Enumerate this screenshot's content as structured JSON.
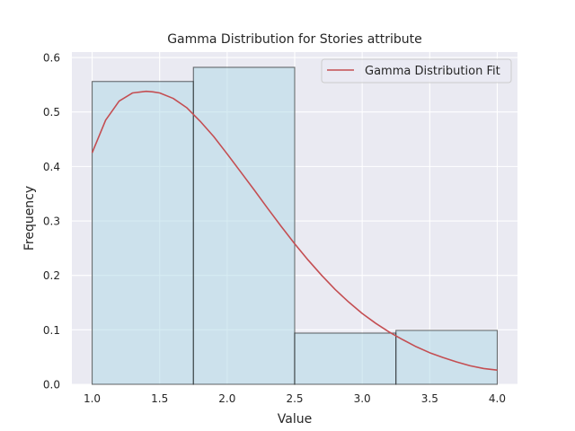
{
  "chart_data": {
    "type": "bar",
    "title": "Gamma Distribution for Stories attribute",
    "xlabel": "Value",
    "ylabel": "Frequency",
    "xlim": [
      0.85,
      4.15
    ],
    "ylim": [
      0.0,
      0.61
    ],
    "x_ticks": [
      1.0,
      1.5,
      2.0,
      2.5,
      3.0,
      3.5,
      4.0
    ],
    "x_tick_labels": [
      "1.0",
      "1.5",
      "2.0",
      "2.5",
      "3.0",
      "3.5",
      "4.0"
    ],
    "y_ticks": [
      0.0,
      0.1,
      0.2,
      0.3,
      0.4,
      0.5,
      0.6
    ],
    "y_tick_labels": [
      "0.0",
      "0.1",
      "0.2",
      "0.3",
      "0.4",
      "0.5",
      "0.6"
    ],
    "grid": true,
    "legend_position": "top-right",
    "histogram": {
      "bin_edges": [
        1.0,
        1.75,
        2.5,
        3.25,
        4.0
      ],
      "values": [
        0.556,
        0.582,
        0.094,
        0.099
      ],
      "fill_color": "#add8e6",
      "edge_color": "#000000"
    },
    "series": [
      {
        "name": "Gamma Distribution Fit",
        "type": "line",
        "color": "#c44e52",
        "x": [
          1.0,
          1.1,
          1.2,
          1.3,
          1.4,
          1.45,
          1.5,
          1.6,
          1.7,
          1.8,
          1.9,
          2.0,
          2.1,
          2.2,
          2.3,
          2.4,
          2.5,
          2.6,
          2.7,
          2.8,
          2.9,
          3.0,
          3.1,
          3.2,
          3.3,
          3.4,
          3.5,
          3.6,
          3.7,
          3.8,
          3.9,
          4.0
        ],
        "y": [
          0.425,
          0.485,
          0.52,
          0.535,
          0.538,
          0.537,
          0.535,
          0.525,
          0.508,
          0.483,
          0.455,
          0.423,
          0.39,
          0.357,
          0.323,
          0.29,
          0.258,
          0.228,
          0.2,
          0.174,
          0.151,
          0.13,
          0.112,
          0.096,
          0.082,
          0.069,
          0.058,
          0.049,
          0.041,
          0.034,
          0.029,
          0.026
        ]
      }
    ],
    "colors": {
      "plot_background": "#eaeaf2",
      "grid": "#ffffff",
      "figure_background": "#ffffff"
    }
  }
}
